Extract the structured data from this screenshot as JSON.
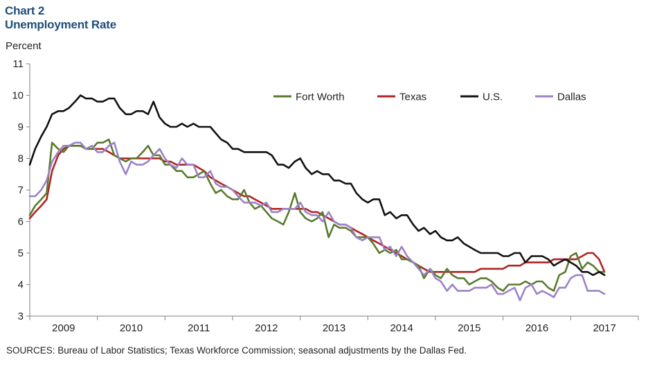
{
  "header": {
    "chart_number": "Chart 2",
    "title": "Unemployment Rate"
  },
  "source_note": "SOURCES: Bureau of Labor Statistics; Texas Workforce Commission; seasonal adjustments by the Dallas Fed.",
  "colors": {
    "Fort Worth": "#5a7a2e",
    "Texas": "#b22222",
    "U.S.": "#111111",
    "Dallas": "#9b82c6",
    "axis": "#808080"
  },
  "chart_data": {
    "type": "line",
    "title": "Unemployment Rate",
    "ylabel": "Percent",
    "xlabel": "",
    "ylim": [
      3,
      11
    ],
    "yticks": [
      3,
      4,
      5,
      6,
      7,
      8,
      9,
      10,
      11
    ],
    "xlim": [
      2008.5,
      2017.5
    ],
    "xtick_labels": [
      "2009",
      "2010",
      "2011",
      "2012",
      "2013",
      "2014",
      "2015",
      "2016",
      "2017"
    ],
    "legend_position": "top-right",
    "series": [
      {
        "name": "Fort Worth",
        "x": [
          2008.5,
          2008.58,
          2008.67,
          2008.75,
          2008.83,
          2008.92,
          2009.0,
          2009.08,
          2009.17,
          2009.25,
          2009.33,
          2009.42,
          2009.5,
          2009.58,
          2009.67,
          2009.75,
          2009.83,
          2009.92,
          2010.0,
          2010.08,
          2010.17,
          2010.25,
          2010.33,
          2010.42,
          2010.5,
          2010.58,
          2010.67,
          2010.75,
          2010.83,
          2010.92,
          2011.0,
          2011.08,
          2011.17,
          2011.25,
          2011.33,
          2011.42,
          2011.5,
          2011.58,
          2011.67,
          2011.75,
          2011.83,
          2011.92,
          2012.0,
          2012.08,
          2012.17,
          2012.25,
          2012.33,
          2012.42,
          2012.5,
          2012.58,
          2012.67,
          2012.75,
          2012.83,
          2012.92,
          2013.0,
          2013.08,
          2013.17,
          2013.25,
          2013.33,
          2013.42,
          2013.5,
          2013.58,
          2013.67,
          2013.75,
          2013.83,
          2013.92,
          2014.0,
          2014.08,
          2014.17,
          2014.25,
          2014.33,
          2014.42,
          2014.5,
          2014.58,
          2014.67,
          2014.75,
          2014.83,
          2014.92,
          2015.0,
          2015.08,
          2015.17,
          2015.25,
          2015.33,
          2015.42,
          2015.5,
          2015.58,
          2015.67,
          2015.75,
          2015.83,
          2015.92,
          2016.0,
          2016.08,
          2016.17,
          2016.25,
          2016.33,
          2016.42,
          2016.5,
          2016.58,
          2016.67,
          2016.75,
          2016.83,
          2016.92,
          2017.0
        ],
        "values": [
          6.2,
          6.5,
          6.7,
          6.9,
          8.5,
          8.3,
          8.2,
          8.4,
          8.4,
          8.4,
          8.3,
          8.3,
          8.5,
          8.5,
          8.6,
          8.1,
          8.0,
          7.9,
          8.0,
          8.0,
          8.2,
          8.4,
          8.1,
          8.1,
          7.8,
          7.8,
          7.6,
          7.6,
          7.4,
          7.4,
          7.5,
          7.6,
          7.2,
          6.9,
          7.0,
          6.8,
          6.7,
          6.7,
          7.0,
          6.6,
          6.4,
          6.5,
          6.3,
          6.1,
          6.0,
          5.9,
          6.3,
          6.9,
          6.3,
          6.1,
          6.0,
          6.1,
          6.3,
          5.5,
          5.9,
          5.8,
          5.8,
          5.7,
          5.5,
          5.5,
          5.5,
          5.3,
          5.0,
          5.1,
          5.0,
          5.1,
          4.8,
          4.8,
          4.7,
          4.6,
          4.2,
          4.5,
          4.3,
          4.2,
          4.5,
          4.3,
          4.2,
          4.2,
          4.0,
          4.1,
          4.2,
          4.2,
          4.1,
          3.9,
          3.8,
          4.0,
          4.0,
          4.0,
          4.1,
          4.0,
          4.1,
          4.1,
          3.9,
          3.8,
          4.3,
          4.4,
          4.9,
          5.0,
          4.5,
          4.7,
          4.6,
          4.4,
          4.4
        ]
      },
      {
        "name": "Texas",
        "x": [
          2008.5,
          2008.58,
          2008.67,
          2008.75,
          2008.83,
          2008.92,
          2009.0,
          2009.08,
          2009.17,
          2009.25,
          2009.33,
          2009.42,
          2009.5,
          2009.58,
          2009.67,
          2009.75,
          2009.83,
          2009.92,
          2010.0,
          2010.08,
          2010.17,
          2010.25,
          2010.33,
          2010.42,
          2010.5,
          2010.58,
          2010.67,
          2010.75,
          2010.83,
          2010.92,
          2011.0,
          2011.08,
          2011.17,
          2011.25,
          2011.33,
          2011.42,
          2011.5,
          2011.58,
          2011.67,
          2011.75,
          2011.83,
          2011.92,
          2012.0,
          2012.08,
          2012.17,
          2012.25,
          2012.33,
          2012.42,
          2012.5,
          2012.58,
          2012.67,
          2012.75,
          2012.83,
          2012.92,
          2013.0,
          2013.08,
          2013.17,
          2013.25,
          2013.33,
          2013.42,
          2013.5,
          2013.58,
          2013.67,
          2013.75,
          2013.83,
          2013.92,
          2014.0,
          2014.08,
          2014.17,
          2014.25,
          2014.33,
          2014.42,
          2014.5,
          2014.58,
          2014.67,
          2014.75,
          2014.83,
          2014.92,
          2015.0,
          2015.08,
          2015.17,
          2015.25,
          2015.33,
          2015.42,
          2015.5,
          2015.58,
          2015.67,
          2015.75,
          2015.83,
          2015.92,
          2016.0,
          2016.08,
          2016.17,
          2016.25,
          2016.33,
          2016.42,
          2016.5,
          2016.58,
          2016.67,
          2016.75,
          2016.83,
          2016.92,
          2017.0
        ],
        "values": [
          6.1,
          6.3,
          6.5,
          6.7,
          7.6,
          8.1,
          8.3,
          8.4,
          8.4,
          8.4,
          8.3,
          8.3,
          8.3,
          8.3,
          8.2,
          8.1,
          8.0,
          8.0,
          8.0,
          8.0,
          8.0,
          8.0,
          8.0,
          8.0,
          7.9,
          7.9,
          7.8,
          7.8,
          7.8,
          7.8,
          7.7,
          7.6,
          7.4,
          7.3,
          7.2,
          7.1,
          7.0,
          6.9,
          6.8,
          6.8,
          6.7,
          6.6,
          6.5,
          6.4,
          6.4,
          6.4,
          6.4,
          6.4,
          6.4,
          6.4,
          6.3,
          6.3,
          6.2,
          6.1,
          6.0,
          5.9,
          5.9,
          5.8,
          5.7,
          5.6,
          5.5,
          5.4,
          5.3,
          5.2,
          5.1,
          5.0,
          4.9,
          4.8,
          4.7,
          4.6,
          4.5,
          4.4,
          4.4,
          4.4,
          4.4,
          4.4,
          4.4,
          4.4,
          4.4,
          4.4,
          4.5,
          4.5,
          4.5,
          4.5,
          4.5,
          4.6,
          4.6,
          4.6,
          4.7,
          4.7,
          4.7,
          4.7,
          4.7,
          4.8,
          4.8,
          4.8,
          4.8,
          4.8,
          4.9,
          5.0,
          5.0,
          4.8,
          4.4
        ]
      },
      {
        "name": "U.S.",
        "x": [
          2008.5,
          2008.58,
          2008.67,
          2008.75,
          2008.83,
          2008.92,
          2009.0,
          2009.08,
          2009.17,
          2009.25,
          2009.33,
          2009.42,
          2009.5,
          2009.58,
          2009.67,
          2009.75,
          2009.83,
          2009.92,
          2010.0,
          2010.08,
          2010.17,
          2010.25,
          2010.33,
          2010.42,
          2010.5,
          2010.58,
          2010.67,
          2010.75,
          2010.83,
          2010.92,
          2011.0,
          2011.08,
          2011.17,
          2011.25,
          2011.33,
          2011.42,
          2011.5,
          2011.58,
          2011.67,
          2011.75,
          2011.83,
          2011.92,
          2012.0,
          2012.08,
          2012.17,
          2012.25,
          2012.33,
          2012.42,
          2012.5,
          2012.58,
          2012.67,
          2012.75,
          2012.83,
          2012.92,
          2013.0,
          2013.08,
          2013.17,
          2013.25,
          2013.33,
          2013.42,
          2013.5,
          2013.58,
          2013.67,
          2013.75,
          2013.83,
          2013.92,
          2014.0,
          2014.08,
          2014.17,
          2014.25,
          2014.33,
          2014.42,
          2014.5,
          2014.58,
          2014.67,
          2014.75,
          2014.83,
          2014.92,
          2015.0,
          2015.08,
          2015.17,
          2015.25,
          2015.33,
          2015.42,
          2015.5,
          2015.58,
          2015.67,
          2015.75,
          2015.83,
          2015.92,
          2016.0,
          2016.08,
          2016.17,
          2016.25,
          2016.33,
          2016.42,
          2016.5,
          2016.58,
          2016.67,
          2016.75,
          2016.83,
          2016.92,
          2017.0
        ],
        "values": [
          7.8,
          8.3,
          8.7,
          9.0,
          9.4,
          9.5,
          9.5,
          9.6,
          9.8,
          10.0,
          9.9,
          9.9,
          9.8,
          9.8,
          9.9,
          9.9,
          9.6,
          9.4,
          9.4,
          9.5,
          9.5,
          9.4,
          9.8,
          9.3,
          9.1,
          9.0,
          9.0,
          9.1,
          9.0,
          9.1,
          9.0,
          9.0,
          9.0,
          8.8,
          8.6,
          8.5,
          8.3,
          8.3,
          8.2,
          8.2,
          8.2,
          8.2,
          8.2,
          8.1,
          7.8,
          7.8,
          7.7,
          7.9,
          8.0,
          7.7,
          7.5,
          7.6,
          7.5,
          7.5,
          7.3,
          7.3,
          7.2,
          7.2,
          6.9,
          6.7,
          6.6,
          6.7,
          6.7,
          6.2,
          6.3,
          6.1,
          6.2,
          6.2,
          5.9,
          5.7,
          5.8,
          5.6,
          5.7,
          5.5,
          5.4,
          5.4,
          5.5,
          5.3,
          5.2,
          5.1,
          5.0,
          5.0,
          5.0,
          5.0,
          4.9,
          4.9,
          5.0,
          5.0,
          4.7,
          4.9,
          4.9,
          4.9,
          4.8,
          4.6,
          4.7,
          4.8,
          4.7,
          4.6,
          4.4,
          4.4,
          4.3,
          4.4,
          4.3
        ]
      },
      {
        "name": "Dallas",
        "x": [
          2008.5,
          2008.58,
          2008.67,
          2008.75,
          2008.83,
          2008.92,
          2009.0,
          2009.08,
          2009.17,
          2009.25,
          2009.33,
          2009.42,
          2009.5,
          2009.58,
          2009.67,
          2009.75,
          2009.83,
          2009.92,
          2010.0,
          2010.08,
          2010.17,
          2010.25,
          2010.33,
          2010.42,
          2010.5,
          2010.58,
          2010.67,
          2010.75,
          2010.83,
          2010.92,
          2011.0,
          2011.08,
          2011.17,
          2011.25,
          2011.33,
          2011.42,
          2011.5,
          2011.58,
          2011.67,
          2011.75,
          2011.83,
          2011.92,
          2012.0,
          2012.08,
          2012.17,
          2012.25,
          2012.33,
          2012.42,
          2012.5,
          2012.58,
          2012.67,
          2012.75,
          2012.83,
          2012.92,
          2013.0,
          2013.08,
          2013.17,
          2013.25,
          2013.33,
          2013.42,
          2013.5,
          2013.58,
          2013.67,
          2013.75,
          2013.83,
          2013.92,
          2014.0,
          2014.08,
          2014.17,
          2014.25,
          2014.33,
          2014.42,
          2014.5,
          2014.58,
          2014.67,
          2014.75,
          2014.83,
          2014.92,
          2015.0,
          2015.08,
          2015.17,
          2015.25,
          2015.33,
          2015.42,
          2015.5,
          2015.58,
          2015.67,
          2015.75,
          2015.83,
          2015.92,
          2016.0,
          2016.08,
          2016.17,
          2016.25,
          2016.33,
          2016.42,
          2016.5,
          2016.58,
          2016.67,
          2016.75,
          2016.83,
          2016.92,
          2017.0
        ],
        "values": [
          6.8,
          6.8,
          7.0,
          7.3,
          7.9,
          8.2,
          8.4,
          8.4,
          8.5,
          8.5,
          8.3,
          8.4,
          8.2,
          8.2,
          8.4,
          8.5,
          7.9,
          7.5,
          7.9,
          7.8,
          7.8,
          7.9,
          8.1,
          8.3,
          8.0,
          7.8,
          7.7,
          8.0,
          7.8,
          7.8,
          7.4,
          7.4,
          7.6,
          7.2,
          7.1,
          7.1,
          7.0,
          6.8,
          6.6,
          6.6,
          6.6,
          6.5,
          6.6,
          6.3,
          6.3,
          6.4,
          6.4,
          6.4,
          6.6,
          6.3,
          6.2,
          6.2,
          6.0,
          6.3,
          6.0,
          5.9,
          5.9,
          5.8,
          5.5,
          5.4,
          5.5,
          5.5,
          5.5,
          5.1,
          5.2,
          4.9,
          5.2,
          4.9,
          4.7,
          4.5,
          4.3,
          4.5,
          4.2,
          4.1,
          3.8,
          4.0,
          3.8,
          3.8,
          3.8,
          3.9,
          3.9,
          3.9,
          4.0,
          3.7,
          3.7,
          3.8,
          3.9,
          3.5,
          3.9,
          4.0,
          3.7,
          3.8,
          3.7,
          3.6,
          3.9,
          3.9,
          4.2,
          4.3,
          4.3,
          3.8,
          3.8,
          3.8,
          3.7
        ]
      }
    ]
  }
}
